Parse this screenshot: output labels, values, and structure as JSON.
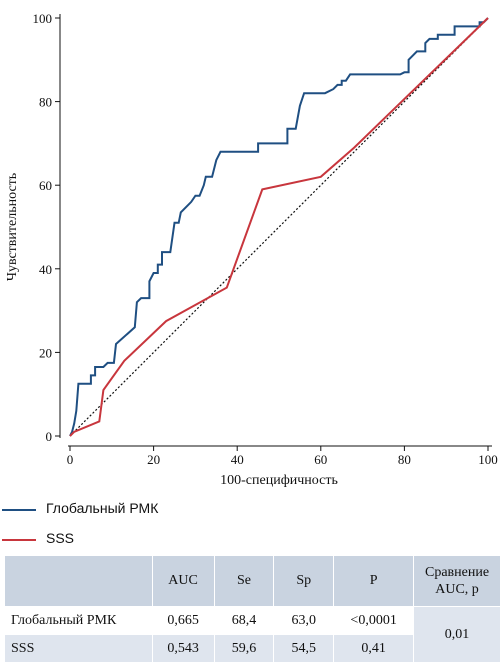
{
  "chart_data": {
    "type": "line",
    "title": "",
    "xlabel": "100-специфичность",
    "ylabel": "Чувствительность",
    "xlim": [
      0,
      100
    ],
    "ylim": [
      0,
      100
    ],
    "xticks": [
      0,
      20,
      40,
      60,
      80,
      100
    ],
    "yticks": [
      0,
      20,
      40,
      60,
      80,
      100
    ],
    "grid": false,
    "diagonal_reference": true,
    "series": [
      {
        "name": "Глобальный РМК",
        "color": "#1f4f82",
        "style": "step",
        "points": [
          [
            0,
            0
          ],
          [
            0.5,
            1
          ],
          [
            1,
            3
          ],
          [
            1.5,
            6
          ],
          [
            2,
            12.5
          ],
          [
            5,
            12.5
          ],
          [
            5,
            14.5
          ],
          [
            6,
            14.5
          ],
          [
            6,
            16.5
          ],
          [
            8,
            16.5
          ],
          [
            9,
            17.5
          ],
          [
            10.5,
            17.5
          ],
          [
            11,
            22
          ],
          [
            15.5,
            26
          ],
          [
            16,
            32
          ],
          [
            17,
            33
          ],
          [
            19,
            33
          ],
          [
            19,
            37
          ],
          [
            20,
            39
          ],
          [
            21,
            39
          ],
          [
            21,
            41
          ],
          [
            22,
            41
          ],
          [
            22,
            44
          ],
          [
            24,
            44
          ],
          [
            25,
            51
          ],
          [
            26,
            51
          ],
          [
            26.5,
            53.5
          ],
          [
            29,
            56
          ],
          [
            30,
            57.5
          ],
          [
            31,
            57.5
          ],
          [
            32,
            60
          ],
          [
            32.5,
            62
          ],
          [
            34,
            62
          ],
          [
            35,
            66
          ],
          [
            36,
            68
          ],
          [
            45,
            68
          ],
          [
            45,
            70
          ],
          [
            52,
            70
          ],
          [
            52,
            73.5
          ],
          [
            54,
            73.5
          ],
          [
            55,
            79
          ],
          [
            56,
            82
          ],
          [
            61,
            82
          ],
          [
            63,
            83
          ],
          [
            64,
            84
          ],
          [
            65,
            84
          ],
          [
            65,
            85
          ],
          [
            66,
            85
          ],
          [
            67,
            86.5
          ],
          [
            79,
            86.5
          ],
          [
            80,
            87
          ],
          [
            81,
            87
          ],
          [
            81,
            90
          ],
          [
            82,
            91
          ],
          [
            83,
            92
          ],
          [
            85,
            92
          ],
          [
            85,
            94
          ],
          [
            86,
            95
          ],
          [
            88,
            95
          ],
          [
            88,
            96
          ],
          [
            92,
            96
          ],
          [
            92,
            98
          ],
          [
            98,
            98
          ],
          [
            98,
            99
          ],
          [
            99,
            99
          ],
          [
            100,
            100
          ]
        ]
      },
      {
        "name": "SSS",
        "color": "#c8363d",
        "style": "line",
        "points": [
          [
            0,
            0
          ],
          [
            1,
            1
          ],
          [
            7,
            3.5
          ],
          [
            8,
            11
          ],
          [
            13,
            18
          ],
          [
            23,
            27.5
          ],
          [
            37.5,
            35.5
          ],
          [
            46,
            59
          ],
          [
            60,
            62
          ],
          [
            68,
            69
          ],
          [
            100,
            100
          ]
        ]
      }
    ]
  },
  "legend": {
    "items": [
      {
        "label": "Глобальный РМК",
        "color": "#1f4f82"
      },
      {
        "label": "SSS",
        "color": "#c8363d"
      }
    ]
  },
  "table": {
    "headers": [
      "",
      "AUC",
      "Se",
      "Sp",
      "P",
      "Сравнение\nAUC, p"
    ],
    "header_cmp_line1": "Сравнение",
    "header_cmp_line2": "AUC, p",
    "rows": [
      {
        "name": "Глобальный РМК",
        "auc": "0,665",
        "se": "68,4",
        "sp": "63,0",
        "p": "<0,0001"
      },
      {
        "name": "SSS",
        "auc": "0,543",
        "se": "59,6",
        "sp": "54,5",
        "p": "0,41"
      }
    ],
    "comparison": "0,01",
    "colors": {
      "header": "#c9d3e0",
      "alt_row": "#dfe5ee"
    }
  }
}
